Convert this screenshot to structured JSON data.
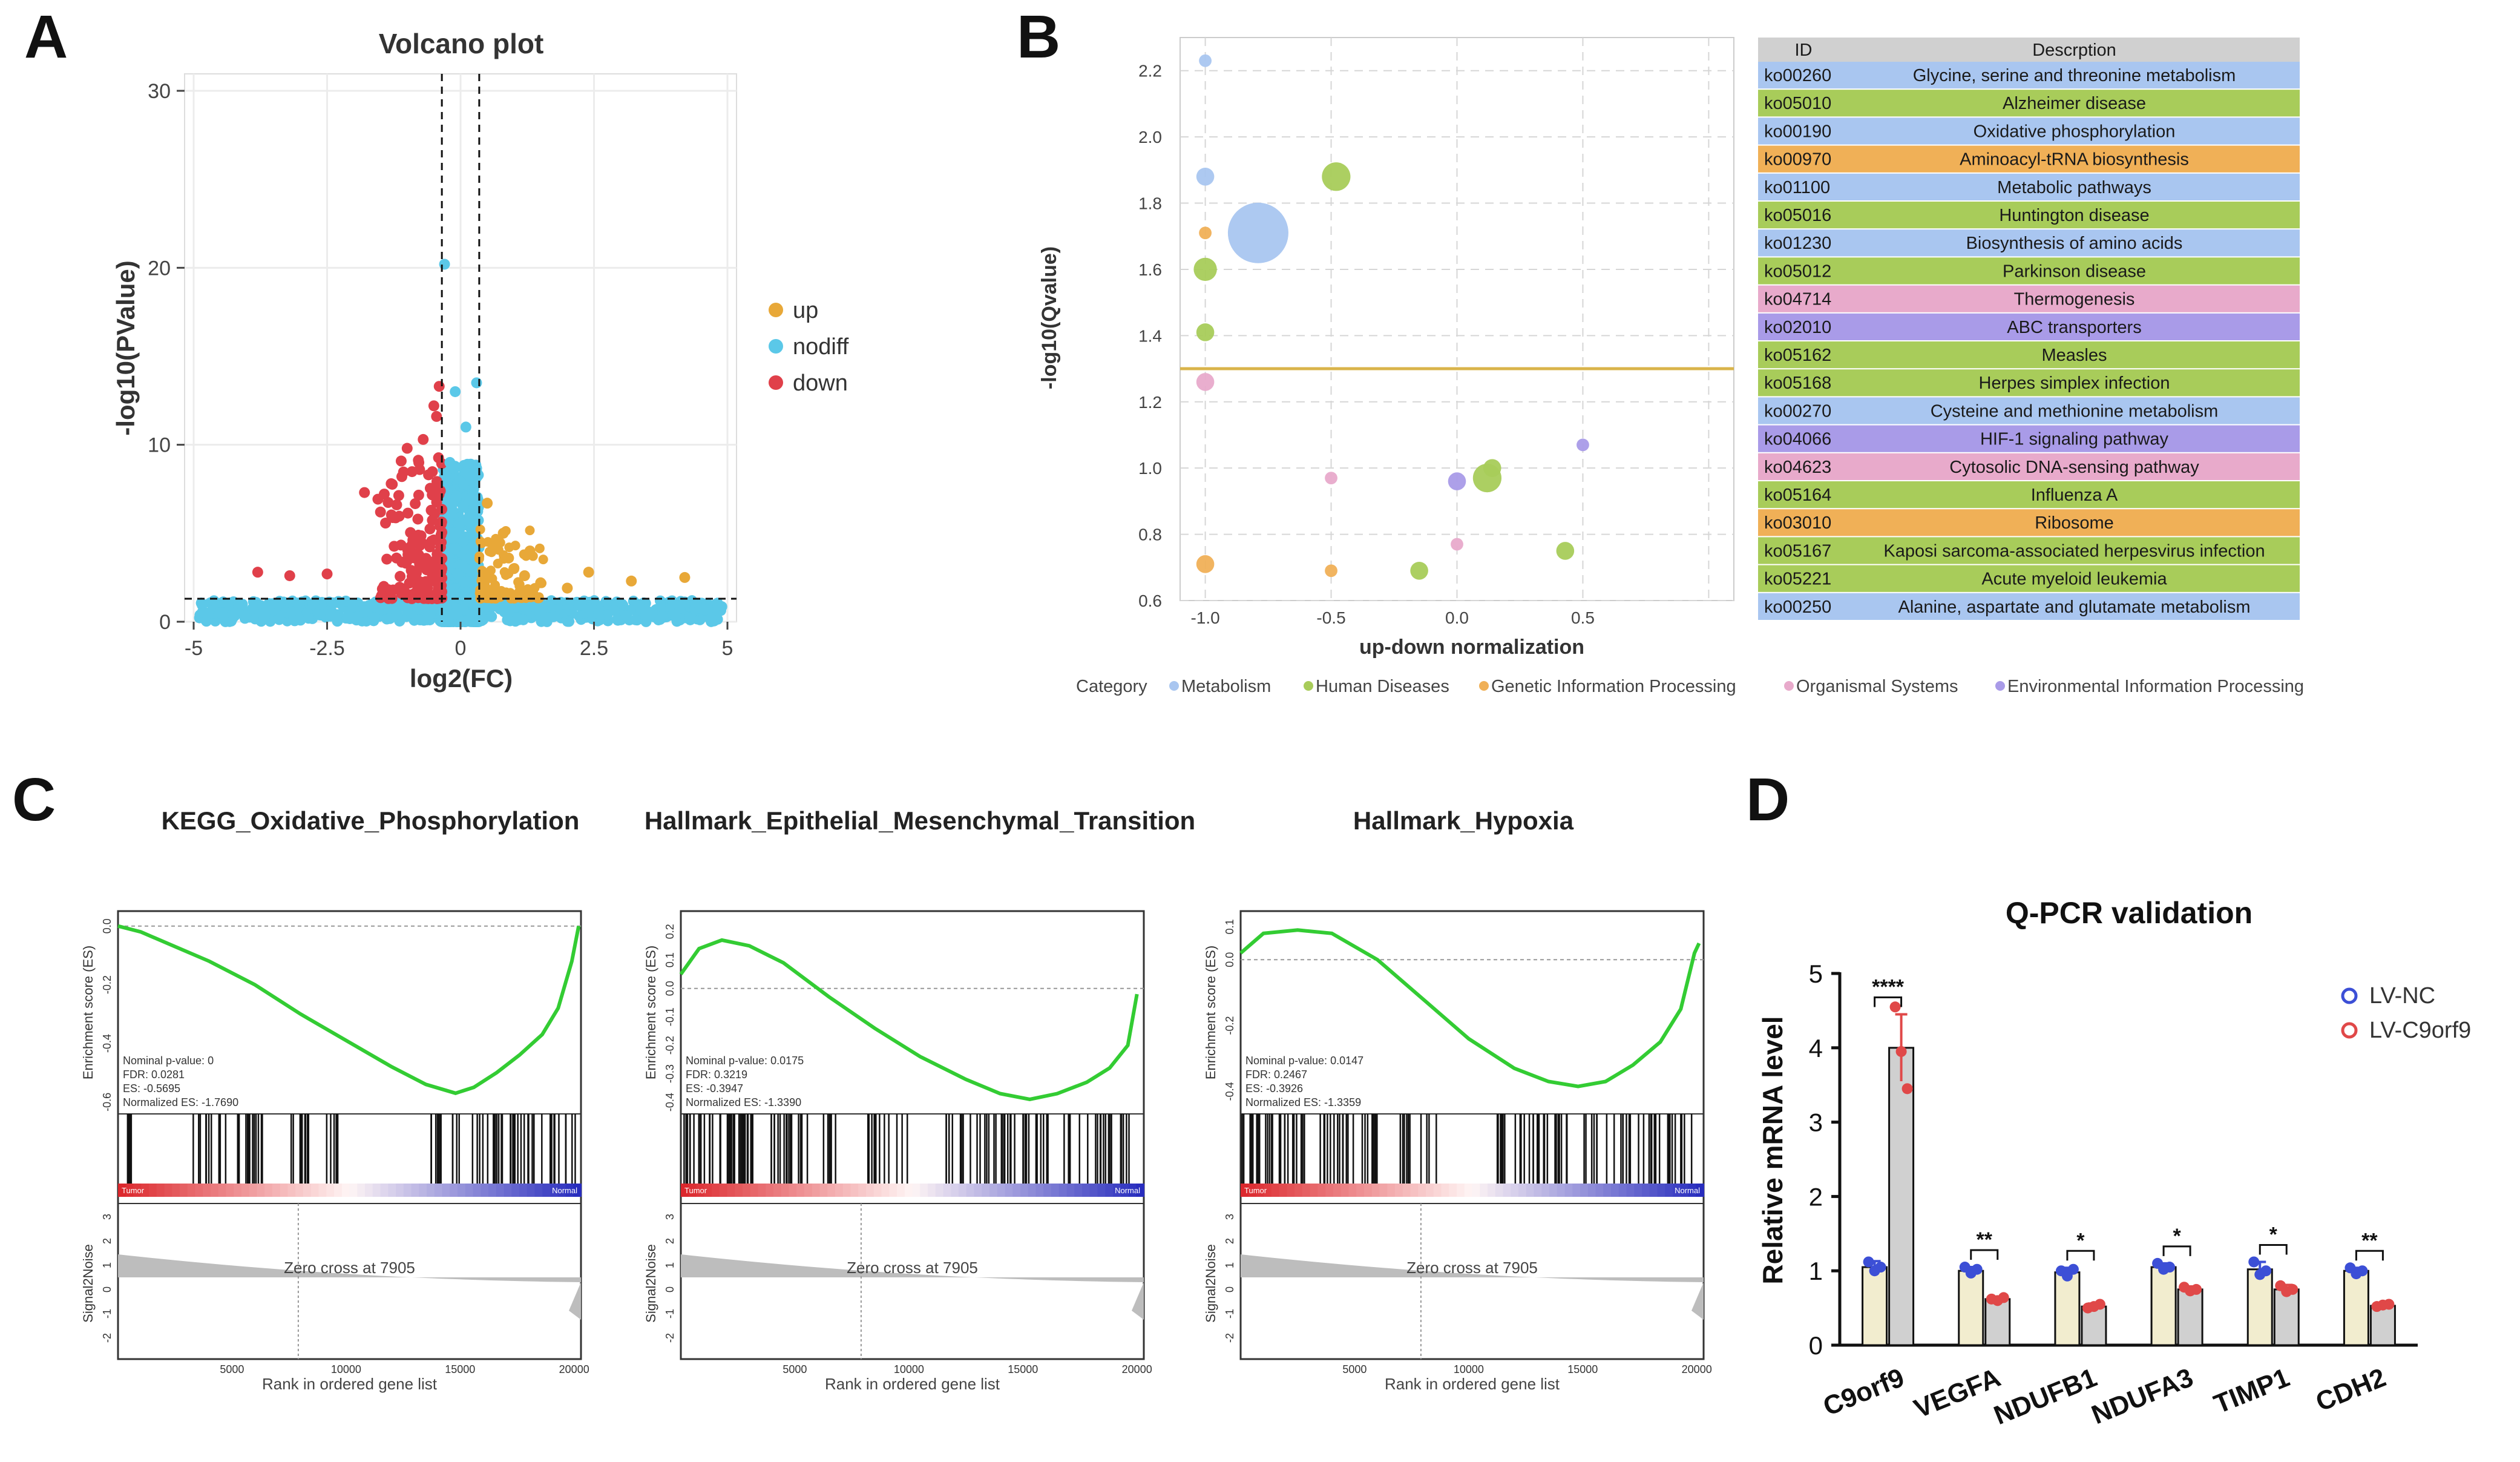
{
  "panel_labels": {
    "a": "A",
    "b": "B",
    "c": "C",
    "d": "D"
  },
  "colors": {
    "up": "#E8A838",
    "nodiff": "#5BC8E8",
    "down": "#E0404A",
    "metabolism": "#A9C6F0",
    "human_diseases": "#A8CC5A",
    "genetic": "#F0B057",
    "organismal": "#E8AACB",
    "environmental": "#A99BE8",
    "gsea_line": "#33CC33",
    "nc": "#3C4FD6",
    "c9orf9": "#E04848"
  },
  "chart_data": [
    {
      "id": "volcano",
      "type": "scatter",
      "title": "Volcano plot",
      "xlabel": "log2(FC)",
      "ylabel": "-log10(PValue)",
      "xlim": [
        -5,
        5
      ],
      "ylim": [
        0,
        30
      ],
      "xticks": [
        -5,
        -2.5,
        0,
        2.5,
        5
      ],
      "xtick_labels": [
        "-5",
        "-2.5",
        "0",
        "2.5",
        "5"
      ],
      "yticks": [
        0,
        10,
        20,
        30
      ],
      "ytick_labels": [
        "0",
        "10",
        "20",
        "30"
      ],
      "vlines": [
        -0.35,
        0.35
      ],
      "hline": 1.3,
      "legend": [
        "up",
        "nodiff",
        "down"
      ],
      "highlight_points": {
        "down": [
          [
            -3.8,
            2.8
          ],
          [
            -3.2,
            2.6
          ],
          [
            -2.5,
            2.7
          ],
          [
            -1.8,
            7.3
          ],
          [
            -1.5,
            6.2
          ],
          [
            -1.3,
            7.8
          ],
          [
            -1.1,
            8.2
          ],
          [
            -1.0,
            9.8
          ],
          [
            -0.8,
            5.8
          ],
          [
            -0.7,
            10.3
          ],
          [
            -0.6,
            8.3
          ],
          [
            -0.5,
            12.2
          ],
          [
            -0.45,
            11.6
          ],
          [
            -0.4,
            13.3
          ],
          [
            -0.55,
            6.3
          ],
          [
            -0.9,
            4.4
          ],
          [
            -1.2,
            3.6
          ]
        ],
        "up": [
          [
            0.5,
            6.7
          ],
          [
            0.6,
            4.4
          ],
          [
            0.8,
            5.0
          ],
          [
            1.0,
            3.0
          ],
          [
            1.2,
            2.6
          ],
          [
            1.5,
            2.2
          ],
          [
            2.0,
            1.9
          ],
          [
            2.4,
            2.8
          ],
          [
            3.2,
            2.3
          ],
          [
            4.2,
            2.5
          ],
          [
            0.9,
            3.6
          ],
          [
            1.3,
            4.0
          ]
        ],
        "nodiff": [
          [
            -0.3,
            20.2
          ],
          [
            -0.1,
            13.0
          ],
          [
            0.1,
            11.0
          ],
          [
            0.3,
            13.5
          ],
          [
            0.2,
            8.0
          ],
          [
            -0.2,
            9.0
          ]
        ]
      }
    },
    {
      "id": "kegg_bubble",
      "type": "scatter",
      "xlabel": "up-down normalization",
      "ylabel": "-log10(Qvalue)",
      "xlim": [
        -1.1,
        1.1
      ],
      "ylim": [
        0.6,
        2.3
      ],
      "xticks": [
        -1.0,
        -0.5,
        0.0,
        0.5
      ],
      "xtick_labels": [
        "-1.0",
        "-0.5",
        "0.0",
        "0.5"
      ],
      "yticks": [
        0.6,
        0.8,
        1.0,
        1.2,
        1.4,
        1.6,
        1.8,
        2.0,
        2.2
      ],
      "ytick_labels": [
        "0.6",
        "0.8",
        "1.0",
        "1.2",
        "1.4",
        "1.6",
        "1.8",
        "2.0",
        "2.2"
      ],
      "threshold": 1.3,
      "points": [
        {
          "x": -1.0,
          "y": 2.23,
          "size": 1,
          "category": "metabolism"
        },
        {
          "x": -1.0,
          "y": 1.88,
          "size": 2,
          "category": "metabolism"
        },
        {
          "x": -0.79,
          "y": 1.71,
          "size": 10,
          "category": "metabolism"
        },
        {
          "x": -0.48,
          "y": 1.88,
          "size": 4,
          "category": "human_diseases"
        },
        {
          "x": -1.0,
          "y": 1.71,
          "size": 1,
          "category": "genetic"
        },
        {
          "x": -1.0,
          "y": 1.6,
          "size": 3,
          "category": "human_diseases"
        },
        {
          "x": -1.0,
          "y": 1.41,
          "size": 2,
          "category": "human_diseases"
        },
        {
          "x": -1.0,
          "y": 1.26,
          "size": 2,
          "category": "organismal"
        },
        {
          "x": 0.0,
          "y": 0.96,
          "size": 2,
          "category": "environmental"
        },
        {
          "x": 0.12,
          "y": 0.97,
          "size": 4,
          "category": "human_diseases"
        },
        {
          "x": 0.14,
          "y": 1.0,
          "size": 2,
          "category": "human_diseases"
        },
        {
          "x": 0.5,
          "y": 1.07,
          "size": 1,
          "category": "environmental"
        },
        {
          "x": -0.5,
          "y": 0.97,
          "size": 1,
          "category": "organismal"
        },
        {
          "x": 0.43,
          "y": 0.75,
          "size": 2,
          "category": "human_diseases"
        },
        {
          "x": -0.15,
          "y": 0.69,
          "size": 2,
          "category": "human_diseases"
        },
        {
          "x": -0.5,
          "y": 0.69,
          "size": 1,
          "category": "genetic"
        },
        {
          "x": -1.0,
          "y": 0.71,
          "size": 2,
          "category": "genetic"
        },
        {
          "x": 0.0,
          "y": 0.77,
          "size": 1,
          "category": "organismal"
        }
      ],
      "table_headers": [
        "ID",
        "Descrption"
      ],
      "table": [
        {
          "id": "ko00260",
          "desc": "Glycine, serine and threonine metabolism",
          "category": "metabolism"
        },
        {
          "id": "ko05010",
          "desc": "Alzheimer disease",
          "category": "human_diseases"
        },
        {
          "id": "ko00190",
          "desc": "Oxidative phosphorylation",
          "category": "metabolism"
        },
        {
          "id": "ko00970",
          "desc": "Aminoacyl-tRNA biosynthesis",
          "category": "genetic"
        },
        {
          "id": "ko01100",
          "desc": "Metabolic pathways",
          "category": "metabolism"
        },
        {
          "id": "ko05016",
          "desc": "Huntington disease",
          "category": "human_diseases"
        },
        {
          "id": "ko01230",
          "desc": "Biosynthesis of amino acids",
          "category": "metabolism"
        },
        {
          "id": "ko05012",
          "desc": "Parkinson disease",
          "category": "human_diseases"
        },
        {
          "id": "ko04714",
          "desc": "Thermogenesis",
          "category": "organismal"
        },
        {
          "id": "ko02010",
          "desc": "ABC transporters",
          "category": "environmental"
        },
        {
          "id": "ko05162",
          "desc": "Measles",
          "category": "human_diseases"
        },
        {
          "id": "ko05168",
          "desc": "Herpes simplex infection",
          "category": "human_diseases"
        },
        {
          "id": "ko00270",
          "desc": "Cysteine and methionine metabolism",
          "category": "metabolism"
        },
        {
          "id": "ko04066",
          "desc": "HIF-1 signaling pathway",
          "category": "environmental"
        },
        {
          "id": "ko04623",
          "desc": "Cytosolic DNA-sensing pathway",
          "category": "organismal"
        },
        {
          "id": "ko05164",
          "desc": "Influenza A",
          "category": "human_diseases"
        },
        {
          "id": "ko03010",
          "desc": "Ribosome",
          "category": "genetic"
        },
        {
          "id": "ko05167",
          "desc": "Kaposi sarcoma-associated herpesvirus infection",
          "category": "human_diseases"
        },
        {
          "id": "ko05221",
          "desc": "Acute myeloid leukemia",
          "category": "human_diseases"
        },
        {
          "id": "ko00250",
          "desc": "Alanine, aspartate and glutamate metabolism",
          "category": "metabolism"
        }
      ],
      "legend_title": "Category",
      "legend": [
        {
          "key": "metabolism",
          "label": "Metabolism"
        },
        {
          "key": "human_diseases",
          "label": "Human Diseases"
        },
        {
          "key": "genetic",
          "label": "Genetic Information Processing"
        },
        {
          "key": "organismal",
          "label": "Organismal Systems"
        },
        {
          "key": "environmental",
          "label": "Environmental Information Processing"
        }
      ]
    },
    {
      "id": "gsea",
      "type": "line",
      "plots": [
        {
          "title": "KEGG_Oxidative_Phosphorylation",
          "ylabel": "Enrichment score (ES)",
          "yticks": [
            "0.0",
            "-0.2",
            "-0.4",
            "-0.6"
          ],
          "ylim": [
            -0.62,
            0.02
          ],
          "es_curve": [
            [
              0,
              0
            ],
            [
              1000,
              -0.02
            ],
            [
              2500,
              -0.07
            ],
            [
              4000,
              -0.12
            ],
            [
              6000,
              -0.2
            ],
            [
              8000,
              -0.3
            ],
            [
              10000,
              -0.39
            ],
            [
              12000,
              -0.48
            ],
            [
              13500,
              -0.54
            ],
            [
              14800,
              -0.57
            ],
            [
              15600,
              -0.55
            ],
            [
              16600,
              -0.5
            ],
            [
              17600,
              -0.44
            ],
            [
              18600,
              -0.37
            ],
            [
              19300,
              -0.28
            ],
            [
              19900,
              -0.12
            ],
            [
              20200,
              0.0
            ]
          ],
          "stats": [
            "Nominal p-value: 0",
            "FDR: 0.0281",
            "ES: -0.5695",
            "Normalized ES: -1.7690"
          ],
          "hits": [
            [
              400,
              600,
              12
            ],
            [
              3100,
              4800,
              10
            ],
            [
              5200,
              6500,
              14
            ],
            [
              7200,
              8500,
              10
            ],
            [
              8900,
              9800,
              6
            ],
            [
              13500,
              20100,
              48
            ]
          ],
          "zero_cross": "Zero cross at 7905",
          "xlabel": "Rank in ordered gene list",
          "signal_ylabel": "Signal2Noise",
          "signal_yticks": [
            "3",
            "2",
            "1",
            "0",
            "-1",
            "-2"
          ],
          "xticks": [
            "5000",
            "10000",
            "15000",
            "20000"
          ],
          "tag_left": "Tumor",
          "tag_right": "Normal"
        },
        {
          "title": "Hallmark_Epithelial_Mesenchymal_Transition",
          "ylabel": "Enrichment score (ES)",
          "yticks": [
            "0.2",
            "0.1",
            "0.0",
            "-0.1",
            "-0.2",
            "-0.3",
            "-0.4"
          ],
          "ylim": [
            -0.42,
            0.24
          ],
          "es_curve": [
            [
              0,
              0.05
            ],
            [
              800,
              0.14
            ],
            [
              1800,
              0.17
            ],
            [
              3000,
              0.15
            ],
            [
              4500,
              0.09
            ],
            [
              6500,
              -0.03
            ],
            [
              8500,
              -0.14
            ],
            [
              10500,
              -0.24
            ],
            [
              12500,
              -0.32
            ],
            [
              14000,
              -0.37
            ],
            [
              15300,
              -0.39
            ],
            [
              16500,
              -0.37
            ],
            [
              17800,
              -0.33
            ],
            [
              18800,
              -0.28
            ],
            [
              19600,
              -0.2
            ],
            [
              20000,
              -0.02
            ]
          ],
          "stats": [
            "Nominal p-value: 0.0175",
            "FDR: 0.3219",
            "ES: -0.3947",
            "Normalized ES: -1.3390"
          ],
          "hits": [
            [
              0,
              3200,
              40
            ],
            [
              3600,
              7200,
              26
            ],
            [
              8000,
              10000,
              12
            ],
            [
              11500,
              20100,
              60
            ]
          ],
          "zero_cross": "Zero cross at 7905",
          "xlabel": "Rank in ordered gene list",
          "signal_ylabel": "Signal2Noise",
          "signal_yticks": [
            "3",
            "2",
            "1",
            "0",
            "-1",
            "-2"
          ],
          "xticks": [
            "5000",
            "10000",
            "15000",
            "20000"
          ],
          "tag_left": "Tumor",
          "tag_right": "Normal"
        },
        {
          "title": "Hallmark_Hypoxia",
          "ylabel": "Enrichment score (ES)",
          "yticks": [
            "0.1",
            "0.0",
            "-0.2",
            "-0.4"
          ],
          "ylim": [
            -0.45,
            0.12
          ],
          "es_curve": [
            [
              0,
              0.02
            ],
            [
              1000,
              0.08
            ],
            [
              2500,
              0.09
            ],
            [
              4000,
              0.08
            ],
            [
              6000,
              0.0
            ],
            [
              8000,
              -0.12
            ],
            [
              10000,
              -0.24
            ],
            [
              12000,
              -0.33
            ],
            [
              13500,
              -0.37
            ],
            [
              14800,
              -0.385
            ],
            [
              16000,
              -0.37
            ],
            [
              17200,
              -0.32
            ],
            [
              18400,
              -0.25
            ],
            [
              19300,
              -0.15
            ],
            [
              19900,
              0.02
            ],
            [
              20100,
              0.05
            ]
          ],
          "stats": [
            "Nominal p-value: 0.0147",
            "FDR: 0.2467",
            "ES: -0.3926",
            "Normalized ES: -1.3359"
          ],
          "hits": [
            [
              0,
              2800,
              30
            ],
            [
              3000,
              6200,
              22
            ],
            [
              7000,
              8800,
              10
            ],
            [
              11200,
              20100,
              62
            ]
          ],
          "zero_cross": "Zero cross at 7905",
          "xlabel": "Rank in ordered gene list",
          "signal_ylabel": "Signal2Noise",
          "signal_yticks": [
            "3",
            "2",
            "1",
            "0",
            "-1",
            "-2"
          ],
          "xticks": [
            "5000",
            "10000",
            "15000",
            "20000"
          ],
          "tag_left": "Tumor",
          "tag_right": "Normal"
        }
      ]
    },
    {
      "id": "qpcr",
      "type": "bar",
      "title": "Q-PCR validation",
      "ylabel": "Relative mRNA level",
      "ylim": [
        0,
        5
      ],
      "yticks": [
        0,
        1,
        2,
        3,
        4,
        5
      ],
      "ytick_labels": [
        "0",
        "1",
        "2",
        "3",
        "4",
        "5"
      ],
      "categories": [
        "C9orf9",
        "VEGFA",
        "NDUFB1",
        "NDUFA3",
        "TIMP1",
        "CDH2"
      ],
      "series": [
        {
          "name": "LV-NC",
          "values": [
            1.05,
            1.0,
            0.98,
            1.05,
            1.02,
            1.0
          ],
          "errors": [
            0.08,
            0.05,
            0.06,
            0.05,
            0.1,
            0.04
          ],
          "points": [
            [
              1.12,
              1.0,
              1.05
            ],
            [
              1.05,
              0.97,
              1.02
            ],
            [
              1.0,
              0.93,
              1.02
            ],
            [
              1.1,
              1.02,
              1.05
            ],
            [
              1.12,
              0.95,
              1.0
            ],
            [
              1.04,
              0.96,
              1.0
            ]
          ]
        },
        {
          "name": "LV-C9orf9",
          "values": [
            4.0,
            0.62,
            0.52,
            0.75,
            0.75,
            0.53
          ],
          "errors": [
            0.45,
            0.03,
            0.04,
            0.04,
            0.06,
            0.03
          ],
          "points": [
            [
              4.55,
              3.95,
              3.45
            ],
            [
              0.62,
              0.6,
              0.64
            ],
            [
              0.5,
              0.52,
              0.55
            ],
            [
              0.78,
              0.73,
              0.75
            ],
            [
              0.8,
              0.72,
              0.75
            ],
            [
              0.52,
              0.54,
              0.55
            ]
          ]
        }
      ],
      "significance": [
        "****",
        "**",
        "*",
        "*",
        "*",
        "**"
      ]
    }
  ]
}
